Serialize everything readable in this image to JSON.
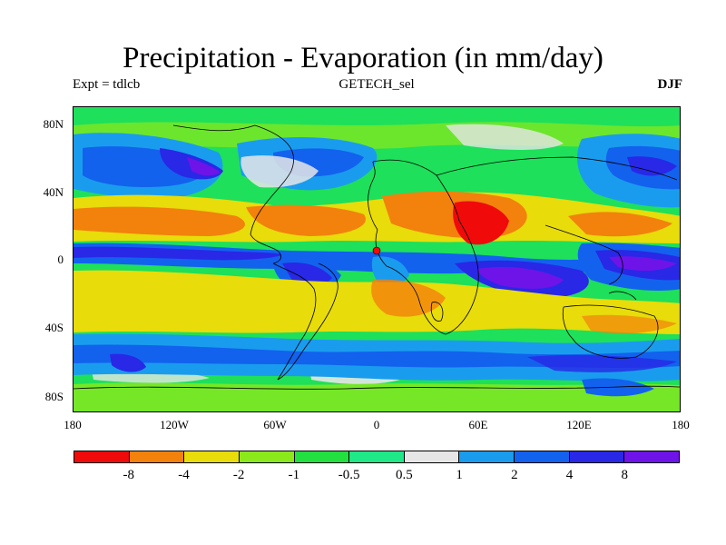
{
  "title": "Precipitation - Evaporation (in mm/day)",
  "subtitle_left": "Expt = tdlcb",
  "subtitle_center": "GETECH_sel",
  "subtitle_right": "DJF",
  "lat_labels": [
    "80N",
    "40N",
    "0",
    "40S",
    "80S"
  ],
  "lon_labels": [
    "180",
    "120W",
    "60W",
    "0",
    "60E",
    "120E",
    "180"
  ],
  "colorbar": {
    "colors": [
      "#f00a0a",
      "#f2820c",
      "#e8dc0a",
      "#8be81a",
      "#22e040",
      "#1ee888",
      "#e6e6e6",
      "#1a9cee",
      "#1262ee",
      "#2828e6",
      "#6e14e8"
    ],
    "labels": [
      "-8",
      "-4",
      "-2",
      "-1",
      "-0.5",
      "0.5",
      "1",
      "2",
      "4",
      "8"
    ]
  },
  "colors": {
    "background": "#1ee05a",
    "dry_strong": "#f00a0a",
    "dry": "#f2820c",
    "dry_mild": "#e8dc0a",
    "neutral": "#e6e6e6",
    "wet_mild": "#1a9cee",
    "wet": "#1262ee",
    "wet_strong": "#2828e6",
    "wet_extreme": "#6e14e8",
    "coastline": "#000000"
  }
}
